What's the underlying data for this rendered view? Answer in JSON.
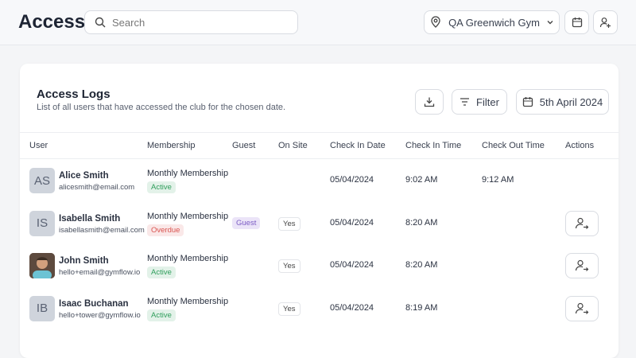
{
  "header": {
    "title": "Access",
    "search_placeholder": "Search",
    "location": "QA Greenwich Gym"
  },
  "logs": {
    "title": "Access Logs",
    "subtitle": "List of all users that have accessed the club for the chosen date.",
    "filter": "Filter",
    "date": "5th April 2024",
    "columns": [
      "User",
      "Membership",
      "Guest",
      "On Site",
      "Check In Date",
      "Check In Time",
      "Check Out Time",
      "Actions"
    ],
    "rows": [
      {
        "initials": "AS",
        "name": "Alice Smith",
        "email": "alicesmith@email.com",
        "membership": "Monthly Membership",
        "status": "Active",
        "status_color": "#2f9e5b",
        "guest": null,
        "on_site": null,
        "check_in_date": "05/04/2024",
        "check_in_time": "9:02 AM",
        "check_out_time": "9:12 AM"
      },
      {
        "initials": "IS",
        "name": "Isabella Smith",
        "email": "isabellasmith@email.com",
        "membership": "Monthly Membership",
        "status": "Overdue",
        "status_color": "#d9534f",
        "guest": "Guest",
        "on_site": "Yes",
        "check_in_date": "05/04/2024",
        "check_in_time": "8:20 AM",
        "check_out_time": null
      },
      {
        "initials": null,
        "name": "John Smith",
        "email": "hello+email@gymflow.io",
        "membership": "Monthly Membership",
        "status": "Active",
        "status_color": "#2f9e5b",
        "guest": null,
        "on_site": "Yes",
        "check_in_date": "05/04/2024",
        "check_in_time": "8:20 AM",
        "check_out_time": null
      },
      {
        "initials": "IB",
        "name": "Isaac Buchanan",
        "email": "hello+tower@gymflow.io",
        "membership": "Monthly Membership",
        "status": "Active",
        "status_color": "#2f9e5b",
        "guest": null,
        "on_site": "Yes",
        "check_in_date": "05/04/2024",
        "check_in_time": "8:19 AM",
        "check_out_time": null
      }
    ]
  }
}
